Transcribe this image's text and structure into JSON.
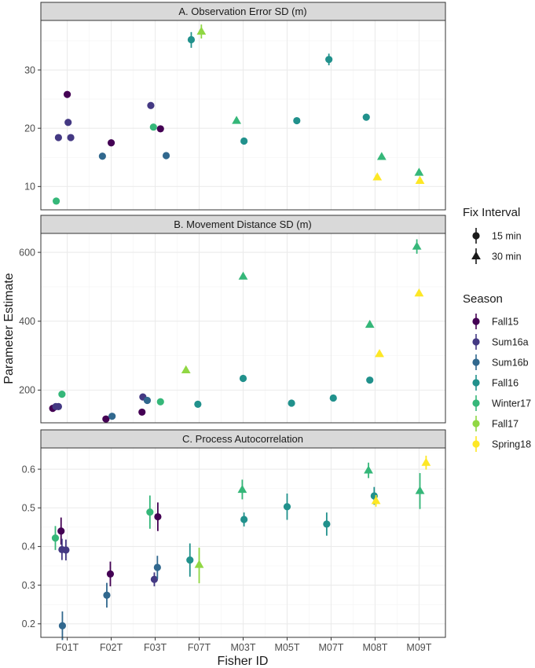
{
  "chart_data": {
    "type": "scatter",
    "xlabel": "Fisher ID",
    "ylabel": "Parameter Estimate",
    "categories": [
      "F01T",
      "F02T",
      "F03T",
      "F07T",
      "M03T",
      "M05T",
      "M07T",
      "M08T",
      "M09T"
    ],
    "legend": {
      "placement": "right",
      "shape_title": "Fix Interval",
      "shapes": [
        {
          "key": "15",
          "label": "15 min",
          "shape": "circle"
        },
        {
          "key": "30",
          "label": "30 min",
          "shape": "triangle"
        }
      ],
      "color_title": "Season",
      "seasons": [
        {
          "name": "Fall15",
          "color": "#440154"
        },
        {
          "name": "Sum16a",
          "color": "#443983"
        },
        {
          "name": "Sum16b",
          "color": "#31688e"
        },
        {
          "name": "Fall16",
          "color": "#21918c"
        },
        {
          "name": "Winter17",
          "color": "#35b779"
        },
        {
          "name": "Fall17",
          "color": "#90d743"
        },
        {
          "name": "Spring18",
          "color": "#fde725"
        }
      ]
    },
    "panels": [
      {
        "title": "A. Observation Error SD (m)",
        "ylim": [
          6,
          38.5
        ],
        "yticks": [
          10,
          20,
          30
        ],
        "grid": true,
        "points": [
          {
            "cat": "F01T",
            "dx": -0.25,
            "season": "Winter17",
            "shape": "15",
            "y": 7.5
          },
          {
            "cat": "F01T",
            "dx": -0.2,
            "season": "Sum16a",
            "shape": "15",
            "y": 18.4
          },
          {
            "cat": "F01T",
            "dx": 0,
            "season": "Fall15",
            "shape": "15",
            "y": 25.8
          },
          {
            "cat": "F01T",
            "dx": 0.02,
            "season": "Sum16a",
            "shape": "15",
            "y": 21.0
          },
          {
            "cat": "F01T",
            "dx": 0.08,
            "season": "Sum16a",
            "shape": "15",
            "y": 18.4
          },
          {
            "cat": "F02T",
            "dx": -0.2,
            "season": "Sum16b",
            "shape": "15",
            "y": 15.2
          },
          {
            "cat": "F02T",
            "dx": 0,
            "season": "Fall15",
            "shape": "15",
            "y": 17.5
          },
          {
            "cat": "F03T",
            "dx": -0.1,
            "season": "Sum16a",
            "shape": "15",
            "y": 23.9
          },
          {
            "cat": "F03T",
            "dx": -0.04,
            "season": "Winter17",
            "shape": "15",
            "y": 20.2
          },
          {
            "cat": "F03T",
            "dx": 0.12,
            "season": "Fall15",
            "shape": "15",
            "y": 19.9
          },
          {
            "cat": "F03T",
            "dx": 0.25,
            "season": "Sum16b",
            "shape": "15",
            "y": 15.3
          },
          {
            "cat": "F07T",
            "dx": -0.18,
            "season": "Fall16",
            "shape": "15",
            "y": 35.2,
            "lo": 33.8,
            "hi": 36.5
          },
          {
            "cat": "F07T",
            "dx": 0.05,
            "season": "Fall17",
            "shape": "30",
            "y": 36.6,
            "lo": 35.4,
            "hi": 37.8
          },
          {
            "cat": "M03T",
            "dx": -0.15,
            "season": "Winter17",
            "shape": "30",
            "y": 21.3
          },
          {
            "cat": "M03T",
            "dx": 0.02,
            "season": "Fall16",
            "shape": "15",
            "y": 17.8
          },
          {
            "cat": "M05T",
            "dx": 0.22,
            "season": "Fall16",
            "shape": "15",
            "y": 21.3
          },
          {
            "cat": "M07T",
            "dx": -0.05,
            "season": "Fall16",
            "shape": "15",
            "y": 31.8,
            "lo": 30.8,
            "hi": 32.8
          },
          {
            "cat": "M08T",
            "dx": -0.2,
            "season": "Fall16",
            "shape": "15",
            "y": 21.9
          },
          {
            "cat": "M08T",
            "dx": 0.05,
            "season": "Spring18",
            "shape": "30",
            "y": 11.6
          },
          {
            "cat": "M08T",
            "dx": 0.15,
            "season": "Winter17",
            "shape": "30",
            "y": 15.1
          },
          {
            "cat": "M09T",
            "dx": 0,
            "season": "Winter17",
            "shape": "30",
            "y": 12.4
          },
          {
            "cat": "M09T",
            "dx": 0.02,
            "season": "Spring18",
            "shape": "30",
            "y": 11.0
          }
        ]
      },
      {
        "title": "B. Movement Distance SD (m)",
        "ylim": [
          105,
          655
        ],
        "yticks": [
          200,
          400,
          600
        ],
        "grid": true,
        "points": [
          {
            "cat": "F01T",
            "dx": -0.33,
            "season": "Fall15",
            "shape": "15",
            "y": 147
          },
          {
            "cat": "F01T",
            "dx": -0.26,
            "season": "Sum16a",
            "shape": "15",
            "y": 152
          },
          {
            "cat": "F01T",
            "dx": -0.2,
            "season": "Sum16a",
            "shape": "15",
            "y": 152
          },
          {
            "cat": "F01T",
            "dx": -0.12,
            "season": "Winter17",
            "shape": "15",
            "y": 188
          },
          {
            "cat": "F02T",
            "dx": -0.12,
            "season": "Fall15",
            "shape": "15",
            "y": 116
          },
          {
            "cat": "F02T",
            "dx": 0.02,
            "season": "Sum16b",
            "shape": "15",
            "y": 124
          },
          {
            "cat": "F03T",
            "dx": -0.3,
            "season": "Fall15",
            "shape": "15",
            "y": 136
          },
          {
            "cat": "F03T",
            "dx": -0.28,
            "season": "Sum16a",
            "shape": "15",
            "y": 180
          },
          {
            "cat": "F03T",
            "dx": -0.18,
            "season": "Sum16b",
            "shape": "15",
            "y": 170
          },
          {
            "cat": "F03T",
            "dx": 0.12,
            "season": "Winter17",
            "shape": "15",
            "y": 166
          },
          {
            "cat": "F07T",
            "dx": -0.3,
            "season": "Fall17",
            "shape": "30",
            "y": 258
          },
          {
            "cat": "F07T",
            "dx": -0.03,
            "season": "Fall16",
            "shape": "15",
            "y": 159
          },
          {
            "cat": "M03T",
            "dx": 0,
            "season": "Winter17",
            "shape": "30",
            "y": 530
          },
          {
            "cat": "M03T",
            "dx": 0,
            "season": "Fall16",
            "shape": "15",
            "y": 234
          },
          {
            "cat": "M05T",
            "dx": 0.1,
            "season": "Fall16",
            "shape": "15",
            "y": 162
          },
          {
            "cat": "M07T",
            "dx": 0.05,
            "season": "Fall16",
            "shape": "15",
            "y": 177
          },
          {
            "cat": "M08T",
            "dx": -0.12,
            "season": "Winter17",
            "shape": "30",
            "y": 390
          },
          {
            "cat": "M08T",
            "dx": -0.12,
            "season": "Fall16",
            "shape": "15",
            "y": 229
          },
          {
            "cat": "M08T",
            "dx": 0.1,
            "season": "Spring18",
            "shape": "30",
            "y": 305
          },
          {
            "cat": "M09T",
            "dx": -0.05,
            "season": "Winter17",
            "shape": "30",
            "y": 617,
            "lo": 596,
            "hi": 638
          },
          {
            "cat": "M09T",
            "dx": 0,
            "season": "Spring18",
            "shape": "30",
            "y": 481
          }
        ]
      },
      {
        "title": "C. Process Autocorrelation",
        "ylim": [
          0.165,
          0.655
        ],
        "yticks": [
          0.2,
          0.3,
          0.4,
          0.5,
          0.6
        ],
        "grid": true,
        "points": [
          {
            "cat": "F01T",
            "dx": -0.27,
            "season": "Winter17",
            "shape": "15",
            "y": 0.422,
            "lo": 0.391,
            "hi": 0.453
          },
          {
            "cat": "F01T",
            "dx": -0.14,
            "season": "Fall15",
            "shape": "15",
            "y": 0.44,
            "lo": 0.405,
            "hi": 0.475
          },
          {
            "cat": "F01T",
            "dx": -0.12,
            "season": "Sum16a",
            "shape": "15",
            "y": 0.392,
            "lo": 0.365,
            "hi": 0.42
          },
          {
            "cat": "F01T",
            "dx": -0.11,
            "season": "Sum16b",
            "shape": "15",
            "y": 0.195,
            "lo": 0.158,
            "hi": 0.232
          },
          {
            "cat": "F01T",
            "dx": -0.03,
            "season": "Sum16a",
            "shape": "15",
            "y": 0.391,
            "lo": 0.364,
            "hi": 0.418
          },
          {
            "cat": "F02T",
            "dx": -0.1,
            "season": "Sum16b",
            "shape": "15",
            "y": 0.274,
            "lo": 0.242,
            "hi": 0.306
          },
          {
            "cat": "F02T",
            "dx": -0.02,
            "season": "Fall15",
            "shape": "15",
            "y": 0.329,
            "lo": 0.297,
            "hi": 0.361
          },
          {
            "cat": "F03T",
            "dx": -0.12,
            "season": "Winter17",
            "shape": "15",
            "y": 0.489,
            "lo": 0.446,
            "hi": 0.532
          },
          {
            "cat": "F03T",
            "dx": -0.02,
            "season": "Sum16a",
            "shape": "15",
            "y": 0.315,
            "lo": 0.297,
            "hi": 0.333
          },
          {
            "cat": "F03T",
            "dx": 0.05,
            "season": "Sum16b",
            "shape": "15",
            "y": 0.346,
            "lo": 0.316,
            "hi": 0.376
          },
          {
            "cat": "F03T",
            "dx": 0.06,
            "season": "Fall15",
            "shape": "15",
            "y": 0.477,
            "lo": 0.44,
            "hi": 0.514
          },
          {
            "cat": "F07T",
            "dx": -0.21,
            "season": "Fall16",
            "shape": "15",
            "y": 0.365,
            "lo": 0.322,
            "hi": 0.408
          },
          {
            "cat": "F07T",
            "dx": 0,
            "season": "Fall17",
            "shape": "30",
            "y": 0.353,
            "lo": 0.305,
            "hi": 0.397
          },
          {
            "cat": "M03T",
            "dx": -0.02,
            "season": "Winter17",
            "shape": "30",
            "y": 0.547,
            "lo": 0.522,
            "hi": 0.573
          },
          {
            "cat": "M03T",
            "dx": 0.02,
            "season": "Fall16",
            "shape": "15",
            "y": 0.47,
            "lo": 0.452,
            "hi": 0.488
          },
          {
            "cat": "M05T",
            "dx": 0,
            "season": "Fall16",
            "shape": "15",
            "y": 0.503,
            "lo": 0.469,
            "hi": 0.537
          },
          {
            "cat": "M07T",
            "dx": -0.1,
            "season": "Fall16",
            "shape": "15",
            "y": 0.458,
            "lo": 0.428,
            "hi": 0.488
          },
          {
            "cat": "M08T",
            "dx": -0.15,
            "season": "Winter17",
            "shape": "30",
            "y": 0.597,
            "lo": 0.577,
            "hi": 0.617
          },
          {
            "cat": "M08T",
            "dx": -0.02,
            "season": "Fall16",
            "shape": "15",
            "y": 0.531,
            "lo": 0.508,
            "hi": 0.554
          },
          {
            "cat": "M08T",
            "dx": 0.02,
            "season": "Spring18",
            "shape": "30",
            "y": 0.518,
            "lo": 0.503,
            "hi": 0.533
          },
          {
            "cat": "M09T",
            "dx": 0.02,
            "season": "Winter17",
            "shape": "30",
            "y": 0.544,
            "lo": 0.497,
            "hi": 0.59
          },
          {
            "cat": "M09T",
            "dx": 0.16,
            "season": "Spring18",
            "shape": "30",
            "y": 0.617,
            "lo": 0.599,
            "hi": 0.635
          }
        ]
      }
    ]
  }
}
